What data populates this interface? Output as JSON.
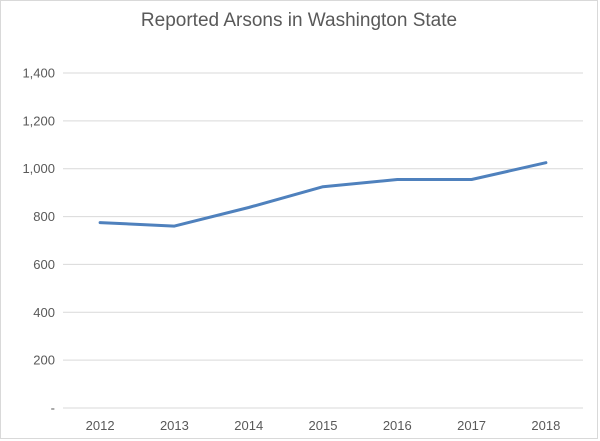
{
  "chart_data": {
    "type": "line",
    "title": "Reported Arsons in Washington State",
    "xlabel": "",
    "ylabel": "",
    "categories": [
      "2012",
      "2013",
      "2014",
      "2015",
      "2016",
      "2017",
      "2018"
    ],
    "series": [
      {
        "values": [
          775,
          760,
          838,
          925,
          955,
          955,
          1025
        ],
        "color": "#4f81bd"
      }
    ],
    "ylim": [
      0,
      1400
    ],
    "y_ticks": [
      0,
      200,
      400,
      600,
      800,
      1000,
      1200,
      1400
    ],
    "y_tick_labels": [
      "-",
      "200",
      "400",
      "600",
      "800",
      "1,000",
      "1,200",
      "1,400"
    ],
    "grid": true,
    "gridline_color": "#d9d9d9",
    "legend": "none"
  }
}
